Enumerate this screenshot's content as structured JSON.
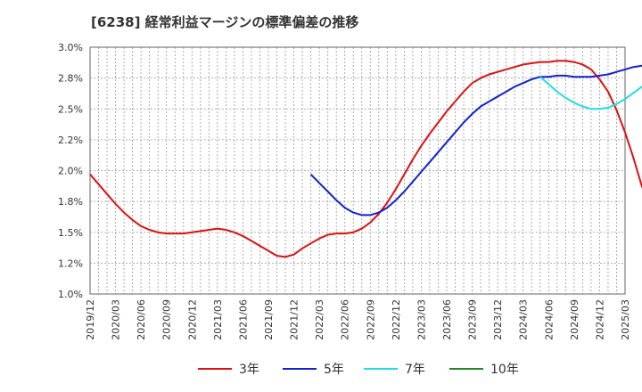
{
  "chart_data": {
    "type": "line",
    "title": "[6238]  経常利益マージンの標準偏差の推移",
    "xlabel": "",
    "ylabel": "",
    "ylim": [
      1.0,
      3.0
    ],
    "y_ticks": [
      "1.0%",
      "1.2%",
      "1.5%",
      "1.8%",
      "2.0%",
      "2.2%",
      "2.5%",
      "2.8%",
      "3.0%"
    ],
    "y_tick_values": [
      1.0,
      1.25,
      1.5,
      1.75,
      2.0,
      2.25,
      2.5,
      2.75,
      3.0
    ],
    "x_ticks": [
      "2019/12",
      "2020/03",
      "2020/06",
      "2020/09",
      "2020/12",
      "2021/03",
      "2021/06",
      "2021/09",
      "2021/12",
      "2022/03",
      "2022/06",
      "2022/09",
      "2022/12",
      "2023/03",
      "2023/06",
      "2023/09",
      "2023/12",
      "2024/03",
      "2024/06",
      "2024/09",
      "2024/12",
      "2025/03"
    ],
    "grid": true,
    "legend_position": "bottom",
    "series": [
      {
        "name": "3年",
        "color": "#dd1111",
        "points": [
          [
            "2019/12",
            1.97
          ],
          [
            "2020/01",
            1.89
          ],
          [
            "2020/02",
            1.81
          ],
          [
            "2020/03",
            1.73
          ],
          [
            "2020/04",
            1.66
          ],
          [
            "2020/05",
            1.6
          ],
          [
            "2020/06",
            1.55
          ],
          [
            "2020/07",
            1.52
          ],
          [
            "2020/08",
            1.5
          ],
          [
            "2020/09",
            1.49
          ],
          [
            "2020/10",
            1.49
          ],
          [
            "2020/11",
            1.49
          ],
          [
            "2020/12",
            1.5
          ],
          [
            "2021/01",
            1.51
          ],
          [
            "2021/02",
            1.52
          ],
          [
            "2021/03",
            1.53
          ],
          [
            "2021/04",
            1.52
          ],
          [
            "2021/05",
            1.5
          ],
          [
            "2021/06",
            1.47
          ],
          [
            "2021/07",
            1.43
          ],
          [
            "2021/08",
            1.39
          ],
          [
            "2021/09",
            1.35
          ],
          [
            "2021/10",
            1.31
          ],
          [
            "2021/11",
            1.3
          ],
          [
            "2021/12",
            1.32
          ],
          [
            "2022/01",
            1.37
          ],
          [
            "2022/02",
            1.41
          ],
          [
            "2022/03",
            1.45
          ],
          [
            "2022/04",
            1.48
          ],
          [
            "2022/05",
            1.49
          ],
          [
            "2022/06",
            1.49
          ],
          [
            "2022/07",
            1.5
          ],
          [
            "2022/08",
            1.53
          ],
          [
            "2022/09",
            1.58
          ],
          [
            "2022/10",
            1.65
          ],
          [
            "2022/11",
            1.74
          ],
          [
            "2022/12",
            1.85
          ],
          [
            "2023/01",
            1.97
          ],
          [
            "2023/02",
            2.09
          ],
          [
            "2023/03",
            2.2
          ],
          [
            "2023/04",
            2.3
          ],
          [
            "2023/05",
            2.39
          ],
          [
            "2023/06",
            2.48
          ],
          [
            "2023/07",
            2.56
          ],
          [
            "2023/08",
            2.64
          ],
          [
            "2023/09",
            2.71
          ],
          [
            "2023/10",
            2.75
          ],
          [
            "2023/11",
            2.78
          ],
          [
            "2023/12",
            2.8
          ],
          [
            "2024/01",
            2.82
          ],
          [
            "2024/02",
            2.84
          ],
          [
            "2024/03",
            2.86
          ],
          [
            "2024/04",
            2.87
          ],
          [
            "2024/05",
            2.88
          ],
          [
            "2024/06",
            2.88
          ],
          [
            "2024/07",
            2.89
          ],
          [
            "2024/08",
            2.89
          ],
          [
            "2024/09",
            2.88
          ],
          [
            "2024/10",
            2.86
          ],
          [
            "2024/11",
            2.82
          ],
          [
            "2024/12",
            2.74
          ],
          [
            "2025/01",
            2.64
          ],
          [
            "2025/02",
            2.49
          ],
          [
            "2025/03",
            2.31
          ],
          [
            "2025/04",
            2.1
          ],
          [
            "2025/05",
            1.87
          ],
          [
            "2025/06",
            1.72
          ]
        ]
      },
      {
        "name": "5年",
        "color": "#1122cc",
        "points": [
          [
            "2022/02",
            1.97
          ],
          [
            "2022/03",
            1.9
          ],
          [
            "2022/04",
            1.83
          ],
          [
            "2022/05",
            1.76
          ],
          [
            "2022/06",
            1.7
          ],
          [
            "2022/07",
            1.66
          ],
          [
            "2022/08",
            1.64
          ],
          [
            "2022/09",
            1.64
          ],
          [
            "2022/10",
            1.66
          ],
          [
            "2022/11",
            1.7
          ],
          [
            "2022/12",
            1.76
          ],
          [
            "2023/01",
            1.83
          ],
          [
            "2023/02",
            1.91
          ],
          [
            "2023/03",
            1.99
          ],
          [
            "2023/04",
            2.07
          ],
          [
            "2023/05",
            2.15
          ],
          [
            "2023/06",
            2.23
          ],
          [
            "2023/07",
            2.31
          ],
          [
            "2023/08",
            2.39
          ],
          [
            "2023/09",
            2.46
          ],
          [
            "2023/10",
            2.52
          ],
          [
            "2023/11",
            2.56
          ],
          [
            "2023/12",
            2.6
          ],
          [
            "2024/01",
            2.64
          ],
          [
            "2024/02",
            2.68
          ],
          [
            "2024/03",
            2.71
          ],
          [
            "2024/04",
            2.74
          ],
          [
            "2024/05",
            2.76
          ],
          [
            "2024/06",
            2.76
          ],
          [
            "2024/07",
            2.77
          ],
          [
            "2024/08",
            2.77
          ],
          [
            "2024/09",
            2.76
          ],
          [
            "2024/10",
            2.76
          ],
          [
            "2024/11",
            2.76
          ],
          [
            "2024/12",
            2.77
          ],
          [
            "2025/01",
            2.78
          ],
          [
            "2025/02",
            2.8
          ],
          [
            "2025/03",
            2.82
          ],
          [
            "2025/04",
            2.84
          ],
          [
            "2025/05",
            2.85
          ],
          [
            "2025/06",
            2.85
          ]
        ]
      },
      {
        "name": "7年",
        "color": "#22dddd",
        "points": [
          [
            "2024/05",
            2.76
          ],
          [
            "2024/06",
            2.7
          ],
          [
            "2024/07",
            2.64
          ],
          [
            "2024/08",
            2.59
          ],
          [
            "2024/09",
            2.55
          ],
          [
            "2024/10",
            2.52
          ],
          [
            "2024/11",
            2.5
          ],
          [
            "2024/12",
            2.5
          ],
          [
            "2025/01",
            2.51
          ],
          [
            "2025/02",
            2.54
          ],
          [
            "2025/03",
            2.58
          ],
          [
            "2025/04",
            2.63
          ],
          [
            "2025/05",
            2.68
          ],
          [
            "2025/06",
            2.73
          ]
        ]
      },
      {
        "name": "10年",
        "color": "#228822",
        "points": []
      }
    ]
  }
}
